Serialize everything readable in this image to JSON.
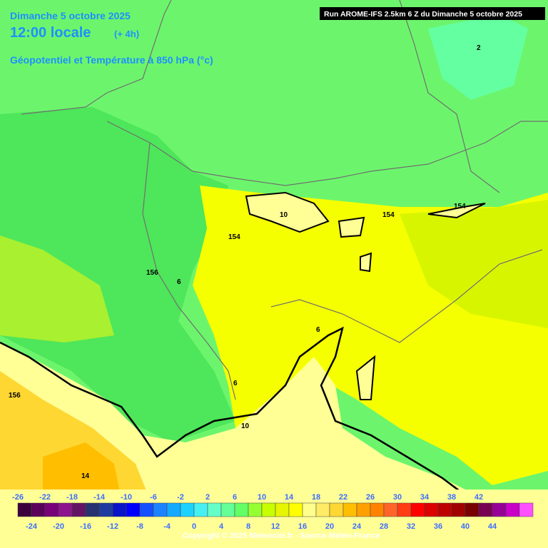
{
  "header": {
    "date": "Dimanche 5 octobre 2025",
    "time": "12:00 locale",
    "offset": "(+ 4h)",
    "field": "Géopotentiel et Température à 850 hPa (°c)",
    "run": "Run AROME-IFS 2.5km 6 Z du Dimanche 5 octobre 2025"
  },
  "contour_labels": [
    "2",
    "10",
    "154",
    "154",
    "154",
    "156",
    "6",
    "6",
    "6",
    "10",
    "156",
    "14"
  ],
  "legend": {
    "top_labels": [
      "-26",
      "-22",
      "-18",
      "-14",
      "-10",
      "-6",
      "-2",
      "2",
      "6",
      "10",
      "14",
      "18",
      "22",
      "26",
      "30",
      "34",
      "38",
      "42"
    ],
    "bottom_labels": [
      "-24",
      "-20",
      "-16",
      "-12",
      "-8",
      "-4",
      "0",
      "4",
      "8",
      "12",
      "16",
      "20",
      "24",
      "28",
      "32",
      "36",
      "40",
      "44"
    ],
    "colors": [
      "#3c003c",
      "#5a005a",
      "#780078",
      "#8c148c",
      "#641464",
      "#283270",
      "#1e3ca0",
      "#0a14c8",
      "#0000ff",
      "#1450ff",
      "#1e82ff",
      "#14aaff",
      "#1ed2ff",
      "#46f0f0",
      "#64ffc8",
      "#64ff96",
      "#64ff64",
      "#96ff32",
      "#c8ff00",
      "#e6f500",
      "#ffff00",
      "#ffff8c",
      "#ffeb64",
      "#ffd732",
      "#ffbe00",
      "#ffa000",
      "#ff8200",
      "#ff6428",
      "#ff3c14",
      "#ff0000",
      "#dc0000",
      "#be0000",
      "#a00000",
      "#780000",
      "#780050",
      "#960096",
      "#c800c8",
      "#ff50ff"
    ]
  },
  "copyright": "Copyright © 2025 Meteociel.fr - Source Meteo-France"
}
